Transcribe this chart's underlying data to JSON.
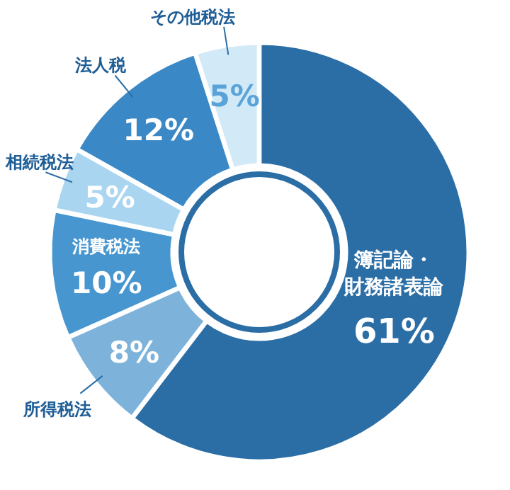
{
  "chart_data": {
    "type": "donut",
    "categories": [
      "簿記論・財務諸表論",
      "所得税法",
      "消費税法",
      "相続税法",
      "法人税",
      "その他税法"
    ],
    "values": [
      61,
      8,
      10,
      5,
      12,
      5
    ],
    "value_labels": [
      "61%",
      "8%",
      "10%",
      "5%",
      "12%",
      "5%"
    ],
    "colors": [
      "#2b6ea6",
      "#7db3da",
      "#4796d0",
      "#a9d5f1",
      "#3a89c6",
      "#d2e9f8"
    ]
  }
}
